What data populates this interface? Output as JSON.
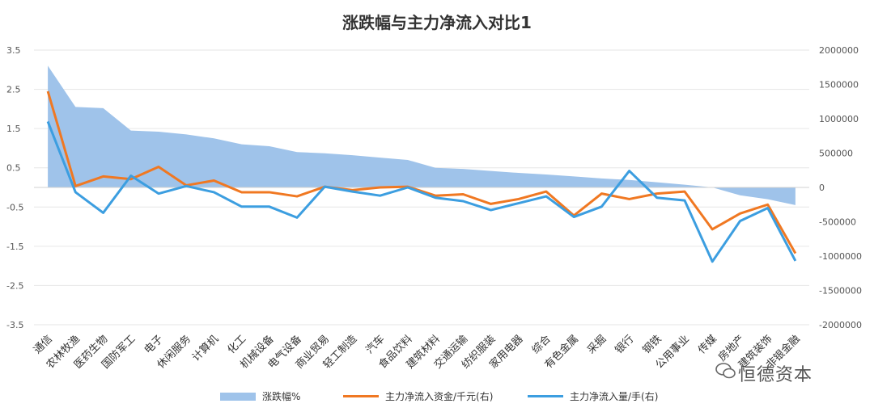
{
  "chart_data": {
    "type": "line",
    "title": "涨跌幅与主力净流入对比1",
    "categories": [
      "通信",
      "农林牧渔",
      "医药生物",
      "国防军工",
      "电子",
      "休闲服务",
      "计算机",
      "化工",
      "机械设备",
      "电气设备",
      "商业贸易",
      "轻工制造",
      "汽车",
      "食品饮料",
      "建筑材料",
      "交通运输",
      "纺织服装",
      "家用电器",
      "综合",
      "有色金属",
      "采掘",
      "银行",
      "钢铁",
      "公用事业",
      "传媒",
      "房地产",
      "建筑装饰",
      "非银金融"
    ],
    "left_axis": {
      "ylim": [
        -3.5,
        3.5
      ],
      "ticks": [
        "3.5",
        "2.5",
        "1.5",
        "0.5",
        "-0.5",
        "-1.5",
        "-2.5",
        "-3.5"
      ]
    },
    "right_axis": {
      "ylim": [
        -2000000,
        2000000
      ],
      "ticks": [
        "2000000",
        "1500000",
        "1000000",
        "500000",
        "0",
        "-500000",
        "-1000000",
        "-1500000",
        "-2000000"
      ]
    },
    "series": [
      {
        "name": "涨跌幅%",
        "kind": "area",
        "axis": "left",
        "color": "#9fc3ea",
        "values": [
          3.1,
          2.05,
          2.02,
          1.45,
          1.42,
          1.35,
          1.25,
          1.1,
          1.05,
          0.9,
          0.87,
          0.82,
          0.76,
          0.7,
          0.5,
          0.47,
          0.42,
          0.37,
          0.33,
          0.28,
          0.23,
          0.19,
          0.13,
          0.07,
          0.0,
          -0.2,
          -0.3,
          -0.45
        ]
      },
      {
        "name": "主力净流入资金/千元(右)",
        "kind": "line",
        "axis": "right",
        "color": "#f07822",
        "values": [
          1400000,
          20000,
          160000,
          120000,
          300000,
          30000,
          100000,
          -70000,
          -70000,
          -130000,
          10000,
          -40000,
          0,
          10000,
          -120000,
          -100000,
          -240000,
          -170000,
          -60000,
          -410000,
          -90000,
          -170000,
          -90000,
          -60000,
          -610000,
          -380000,
          -250000,
          -960000
        ]
      },
      {
        "name": "主力净流入量/手(右)",
        "kind": "line",
        "axis": "right",
        "color": "#3c9ee0",
        "values": [
          960000,
          -70000,
          -370000,
          170000,
          -90000,
          20000,
          -70000,
          -280000,
          -280000,
          -440000,
          10000,
          -60000,
          -120000,
          0,
          -150000,
          -200000,
          -330000,
          -230000,
          -130000,
          -430000,
          -280000,
          240000,
          -150000,
          -190000,
          -1080000,
          -490000,
          -300000,
          -1070000
        ]
      }
    ],
    "legend_position": "bottom",
    "grid": true
  },
  "watermark": "恒德资本"
}
